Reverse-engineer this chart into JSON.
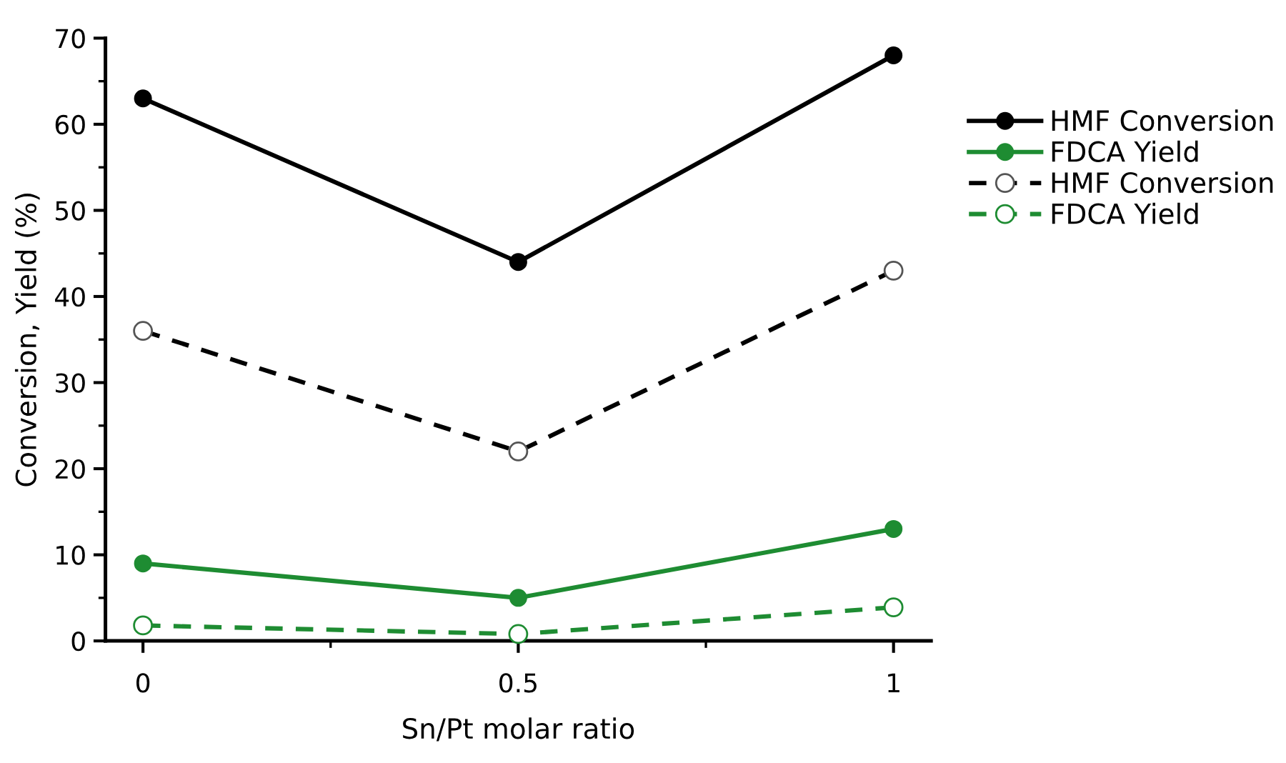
{
  "chart_data": {
    "type": "line",
    "xlabel": "Sn/Pt molar ratio",
    "ylabel": "Conversion, Yield (%)",
    "x": [
      0,
      0.5,
      1
    ],
    "series": [
      {
        "name": "HMF Conversion",
        "color": "#000000",
        "values": [
          63,
          44,
          68
        ],
        "marker": "circle",
        "line_style": "solid"
      },
      {
        "name": "FDCA Yield",
        "color": "#1e8c32",
        "values": [
          9,
          5,
          13
        ],
        "marker": "circle",
        "line_style": "solid"
      },
      {
        "name": "HMF Conversion",
        "color": "#000000",
        "values": [
          36,
          22,
          43
        ],
        "marker": "circle",
        "line_style": "dashed"
      },
      {
        "name": "FDCA Yield",
        "color": "#1e8c32",
        "values": [
          1.8,
          0.8,
          3.9
        ],
        "marker": "circle",
        "line_style": "dashed"
      }
    ],
    "xlim": [
      -0.05,
      1.05
    ],
    "xticks": [
      0,
      {
        "value": 0.25,
        "label": null
      },
      0.5,
      {
        "value": 0.75,
        "label": null
      },
      1
    ],
    "ylim": [
      0,
      70
    ],
    "yticks": [
      0,
      {
        "value": 5,
        "label": null
      },
      10,
      {
        "value": 15,
        "label": null
      },
      20,
      {
        "value": 25,
        "label": null
      },
      30,
      {
        "value": 35,
        "label": null
      },
      40,
      {
        "value": 45,
        "label": null
      },
      50,
      {
        "value": 55,
        "label": null
      },
      60,
      {
        "value": 65,
        "label": null
      },
      70
    ],
    "grid": false,
    "legend": "top right"
  }
}
